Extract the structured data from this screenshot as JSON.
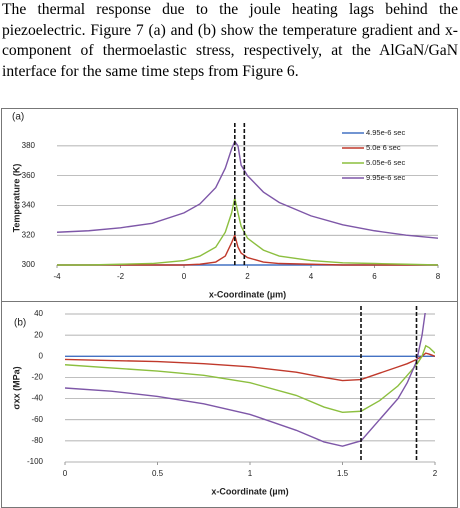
{
  "paragraph": "The thermal response due to the joule heating lags behind the piezoelectric. Figure 7 (a) and (b) show the temperature gradient and x-component of thermoelastic stress, respectively, at the AlGaN/GaN interface for the same time steps from Figure 6.",
  "chart_data": [
    {
      "type": "line",
      "panel_label": "(a)",
      "ylabel": "Temperature (K)",
      "xlabel": "x-Coordinate (µm)",
      "x": [
        -4,
        -3,
        -2,
        -1,
        0,
        0.5,
        1,
        1.3,
        1.5,
        1.6,
        1.7,
        1.8,
        2,
        2.5,
        3,
        4,
        5,
        6,
        7,
        8
      ],
      "series": [
        {
          "name": "4.95e-6 sec",
          "color": "#4472c4",
          "values": [
            300,
            300,
            300,
            300,
            300,
            300,
            300,
            300,
            300,
            300,
            300,
            300,
            300,
            300,
            300,
            300,
            300,
            300,
            300,
            300
          ]
        },
        {
          "name": "5.0e 6 sec",
          "color": "#c0392b",
          "values": [
            300,
            300,
            300,
            300,
            300,
            300.5,
            302,
            306,
            315,
            320,
            312,
            308,
            305,
            302,
            301,
            300.5,
            300,
            300,
            300,
            300
          ]
        },
        {
          "name": "5.05e-6 sec",
          "color": "#8cbf3f",
          "values": [
            300,
            300,
            300.5,
            301,
            303,
            306,
            312,
            322,
            335,
            345,
            335,
            326,
            318,
            310,
            306,
            303,
            301.5,
            301,
            300.5,
            300
          ]
        },
        {
          "name": "9.95e-6 sec",
          "color": "#7e57a8",
          "values": [
            322,
            323,
            325,
            328,
            335,
            341,
            352,
            365,
            378,
            383,
            380,
            367,
            360,
            349,
            342,
            333,
            327,
            323,
            320,
            318
          ]
        }
      ],
      "xlim": [
        -4,
        8
      ],
      "xticks": [
        -4,
        -2,
        0,
        2,
        4,
        6,
        8
      ],
      "ylim": [
        300,
        390
      ],
      "yticks": [
        300,
        320,
        340,
        360,
        380
      ],
      "vlines": [
        1.6,
        1.9
      ],
      "grid": true,
      "legend": "upper right"
    },
    {
      "type": "line",
      "panel_label": "(b)",
      "ylabel": "σxx (MPa)",
      "xlabel": "x-Coordinate (µm)",
      "x": [
        0,
        0.25,
        0.5,
        0.75,
        1,
        1.25,
        1.4,
        1.5,
        1.6,
        1.7,
        1.8,
        1.85,
        1.9,
        1.93,
        1.95,
        1.97,
        2
      ],
      "series": [
        {
          "color": "#4472c4",
          "values": [
            0,
            0,
            0,
            0,
            0,
            0,
            0,
            0,
            0,
            0,
            0,
            0,
            0,
            0,
            0,
            0,
            0
          ]
        },
        {
          "color": "#c0392b",
          "values": [
            -3,
            -4,
            -5,
            -7,
            -10,
            -15,
            -20,
            -23,
            -22,
            -16,
            -10,
            -7,
            -3,
            0,
            3,
            2,
            0
          ]
        },
        {
          "color": "#8cbf3f",
          "values": [
            -8,
            -11,
            -14,
            -18,
            -25,
            -37,
            -48,
            -53,
            -52,
            -42,
            -28,
            -18,
            -8,
            0,
            10,
            8,
            3
          ]
        },
        {
          "color": "#7e57a8",
          "values": [
            -30,
            -33,
            -38,
            -45,
            -55,
            -70,
            -81,
            -85,
            -80,
            -60,
            -40,
            -25,
            -5,
            20,
            45,
            null,
            null
          ]
        }
      ],
      "xlim": [
        0,
        2
      ],
      "xticks": [
        0,
        0.5,
        1,
        1.5,
        2
      ],
      "ylim": [
        -100,
        40
      ],
      "yticks": [
        -100,
        -80,
        -60,
        -40,
        -20,
        0,
        20,
        40
      ],
      "vlines": [
        1.6,
        1.9
      ],
      "grid": true
    }
  ]
}
